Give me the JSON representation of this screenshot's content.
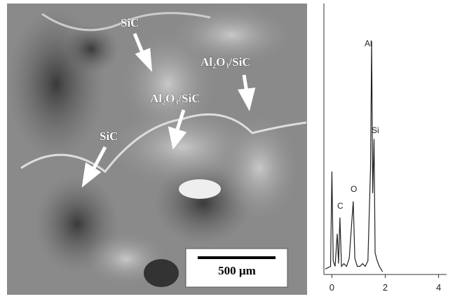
{
  "sem_image": {
    "labels": [
      "SiC",
      "Al₂O₃/SiC",
      "Al₂O₃/SiC",
      "SiC"
    ],
    "scale_bar": "500 µm"
  },
  "chart_data": {
    "type": "line",
    "x": [
      -0.25,
      -0.05,
      0.0,
      0.05,
      0.12,
      0.2,
      0.25,
      0.3,
      0.36,
      0.45,
      0.55,
      0.65,
      0.75,
      0.8,
      0.86,
      0.95,
      1.05,
      1.15,
      1.25,
      1.35,
      1.45,
      1.49,
      1.53,
      1.58,
      1.62,
      1.7,
      1.78,
      1.9
    ],
    "values": [
      2,
      3,
      38,
      5,
      3,
      15,
      4,
      21,
      3,
      4,
      3,
      6,
      20,
      27,
      6,
      3,
      3,
      4,
      3,
      5,
      40,
      86,
      30,
      50,
      8,
      5,
      3,
      1
    ],
    "color": "#222222",
    "xlim": [
      -0.3,
      4.3
    ],
    "xticks": [
      0,
      2,
      4
    ],
    "ylim": [
      0,
      100
    ],
    "annotations": [
      "Al",
      "Si",
      "O",
      "C"
    ]
  }
}
